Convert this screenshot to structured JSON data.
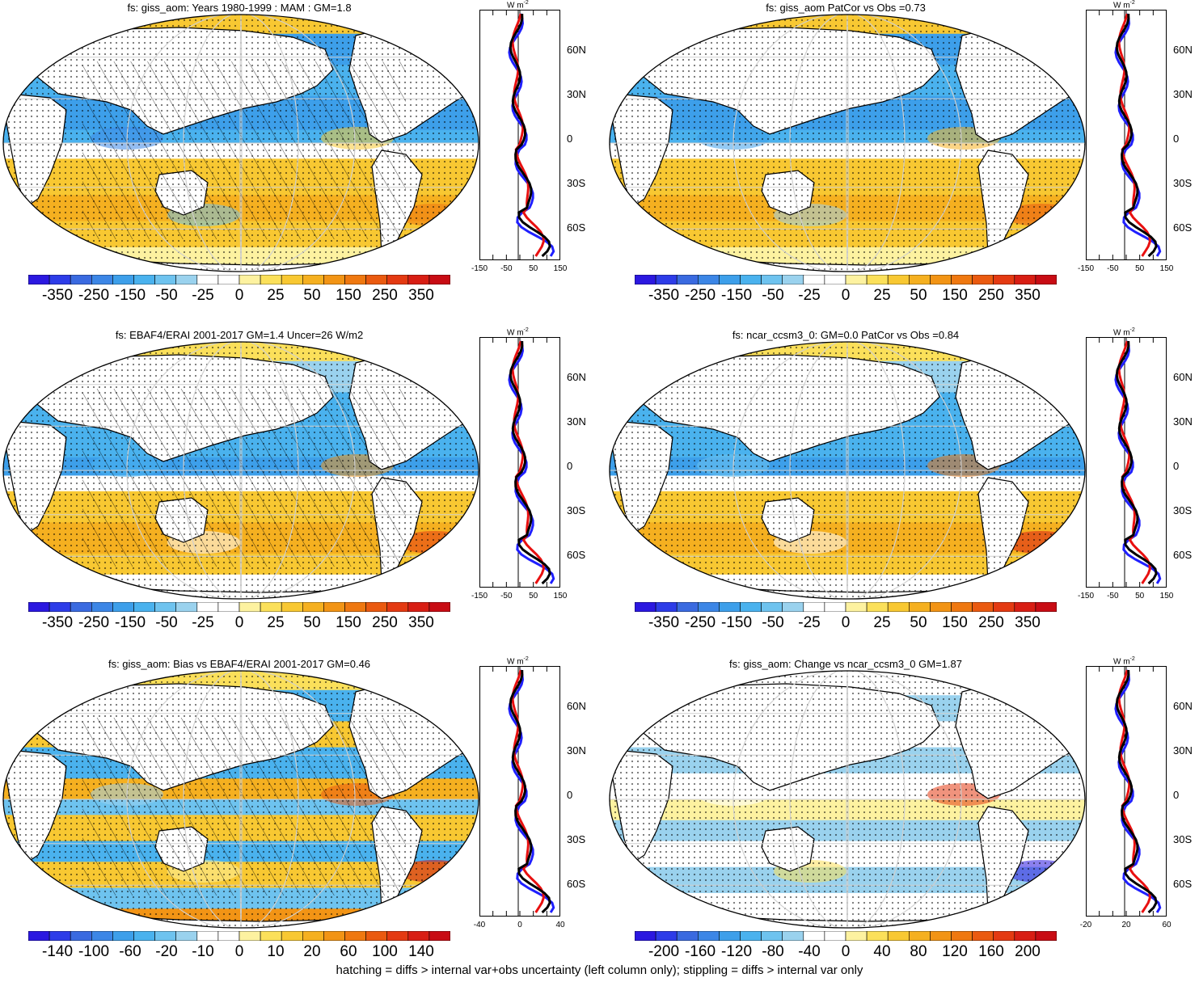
{
  "colors": {
    "scale": [
      "#2b18e0",
      "#2d3ce8",
      "#3a6ae0",
      "#3c86e6",
      "#3d9fea",
      "#4ab2ee",
      "#6ec3ef",
      "#9ad2ee",
      "#ffffff",
      "#ffffff",
      "#fdf2a0",
      "#fbe05a",
      "#f8c832",
      "#f5b020",
      "#f29415",
      "#ef7810",
      "#ea5a10",
      "#e43a12",
      "#d81e14",
      "#c80c14"
    ],
    "land": "#ffffff",
    "obs_line": "#1f1fff",
    "model_line": "#e81010",
    "diff_line": "#000000"
  },
  "footer": "hatching = diffs > internal var+obs uncertainty (left column only); stippling = diffs > internal var only",
  "panels": [
    {
      "id": "p1",
      "title": "fs: giss_aom: Years 1980-1999 : MAM : GM=1.8",
      "colorbar_labels": [
        "-350",
        "-250",
        "-150",
        "-50",
        "-25",
        "0",
        "25",
        "50",
        "150",
        "250",
        "350"
      ],
      "zonal_unit": "W m",
      "zonal_unit_sup": "-2",
      "lat_labels": [
        "60N",
        "30N",
        "0",
        "30S",
        "60S"
      ],
      "zonal_x_labels": [
        "-150",
        "-50",
        "50",
        "150"
      ],
      "pattern": "model",
      "hatch": true
    },
    {
      "id": "p2",
      "title": "fs: giss_aom PatCor vs Obs =0.73",
      "colorbar_labels": [
        "-350",
        "-250",
        "-150",
        "-50",
        "-25",
        "0",
        "25",
        "50",
        "150",
        "250",
        "350"
      ],
      "zonal_unit": "W m",
      "zonal_unit_sup": "-2",
      "lat_labels": [
        "60N",
        "30N",
        "0",
        "30S",
        "60S"
      ],
      "zonal_x_labels": [
        "-150",
        "-50",
        "50",
        "150"
      ],
      "pattern": "model",
      "hatch": false
    },
    {
      "id": "p3",
      "title": "fs: EBAF4/ERAI 2001-2017 GM=1.4 Uncer=26 W/m2",
      "colorbar_labels": [
        "-350",
        "-250",
        "-150",
        "-50",
        "-25",
        "0",
        "25",
        "50",
        "150",
        "250",
        "350"
      ],
      "zonal_unit": "W m",
      "zonal_unit_sup": "-2",
      "lat_labels": [
        "60N",
        "30N",
        "0",
        "30S",
        "60S"
      ],
      "zonal_x_labels": [
        "-150",
        "-50",
        "50",
        "150"
      ],
      "pattern": "obs",
      "hatch": true
    },
    {
      "id": "p4",
      "title": "fs: ncar_ccsm3_0: GM=0.0 PatCor vs Obs =0.84",
      "colorbar_labels": [
        "-350",
        "-250",
        "-150",
        "-50",
        "-25",
        "0",
        "25",
        "50",
        "150",
        "250",
        "350"
      ],
      "zonal_unit": "W m",
      "zonal_unit_sup": "-2",
      "lat_labels": [
        "60N",
        "30N",
        "0",
        "30S",
        "60S"
      ],
      "zonal_x_labels": [
        "-150",
        "-50",
        "50",
        "150"
      ],
      "pattern": "obs",
      "hatch": false
    },
    {
      "id": "p5",
      "title": "fs: giss_aom: Bias vs EBAF4/ERAI 2001-2017 GM=0.46",
      "colorbar_labels": [
        "-140",
        "-100",
        "-60",
        "-20",
        "-10",
        "0",
        "10",
        "20",
        "60",
        "100",
        "140"
      ],
      "zonal_unit": "W m",
      "zonal_unit_sup": "-2",
      "lat_labels": [
        "60N",
        "30N",
        "0",
        "30S",
        "60S"
      ],
      "zonal_x_labels": [
        "-40",
        "0",
        "40"
      ],
      "pattern": "bias",
      "hatch": true
    },
    {
      "id": "p6",
      "title": "fs: giss_aom: Change vs ncar_ccsm3_0 GM=1.87",
      "colorbar_labels": [
        "-200",
        "-160",
        "-120",
        "-80",
        "-40",
        "0",
        "40",
        "80",
        "120",
        "160",
        "200"
      ],
      "zonal_unit": "W m",
      "zonal_unit_sup": "-2",
      "lat_labels": [
        "60N",
        "30N",
        "0",
        "30S",
        "60S"
      ],
      "zonal_x_labels": [
        "-20",
        "20",
        "60"
      ],
      "pattern": "change",
      "hatch": false
    }
  ]
}
